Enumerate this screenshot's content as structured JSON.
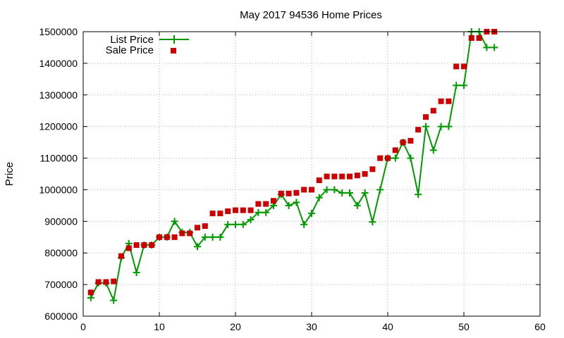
{
  "chart_data": {
    "type": "line",
    "title": "May 2017 94536 Home Prices",
    "xlabel": "",
    "ylabel": "Price",
    "xlim": [
      0,
      60
    ],
    "ylim": [
      600000,
      1500000
    ],
    "xticks": [
      0,
      10,
      20,
      30,
      40,
      50,
      60
    ],
    "yticks": [
      600000,
      700000,
      800000,
      900000,
      1000000,
      1100000,
      1200000,
      1300000,
      1400000,
      1500000
    ],
    "grid": true,
    "legend_position": "top-left",
    "series": [
      {
        "name": "List Price",
        "style": "line-plus",
        "color": "#009900",
        "x": [
          1,
          2,
          3,
          4,
          5,
          6,
          7,
          8,
          9,
          10,
          11,
          12,
          13,
          14,
          15,
          16,
          17,
          18,
          19,
          20,
          21,
          22,
          23,
          24,
          25,
          26,
          27,
          28,
          29,
          30,
          31,
          32,
          33,
          34,
          35,
          36,
          37,
          38,
          39,
          40,
          41,
          42,
          43,
          44,
          45,
          46,
          47,
          48,
          49,
          50,
          51,
          52,
          53,
          54
        ],
        "y": [
          658000,
          705000,
          705000,
          650000,
          785000,
          830000,
          738000,
          825000,
          825000,
          850000,
          850000,
          900000,
          865000,
          865000,
          820000,
          850000,
          850000,
          850000,
          890000,
          890000,
          890000,
          905000,
          928000,
          928000,
          950000,
          985000,
          950000,
          960000,
          890000,
          925000,
          975000,
          1000000,
          1000000,
          990000,
          990000,
          950000,
          990000,
          898000,
          1000000,
          1100000,
          1100000,
          1150000,
          1100000,
          985000,
          1200000,
          1125000,
          1200000,
          1200000,
          1330000,
          1330000,
          1500000,
          1500000,
          1450000,
          1450000
        ]
      },
      {
        "name": "Sale Price",
        "style": "square",
        "color": "#cc0000",
        "x": [
          1,
          2,
          3,
          4,
          5,
          6,
          7,
          8,
          9,
          10,
          11,
          12,
          13,
          14,
          15,
          16,
          17,
          18,
          19,
          20,
          21,
          22,
          23,
          24,
          25,
          26,
          27,
          28,
          29,
          30,
          31,
          32,
          33,
          34,
          35,
          36,
          37,
          38,
          39,
          40,
          41,
          42,
          43,
          44,
          45,
          46,
          47,
          48,
          49,
          50,
          51,
          52,
          53,
          54
        ],
        "y": [
          675000,
          708000,
          708000,
          710000,
          790000,
          815000,
          825000,
          825000,
          825000,
          850000,
          850000,
          850000,
          862000,
          862000,
          880000,
          885000,
          925000,
          925000,
          932000,
          935000,
          935000,
          935000,
          955000,
          955000,
          965000,
          988000,
          988000,
          990000,
          1000000,
          1000000,
          1030000,
          1042000,
          1042000,
          1042000,
          1042000,
          1045000,
          1050000,
          1065000,
          1100000,
          1100000,
          1125000,
          1150000,
          1155000,
          1190000,
          1230000,
          1250000,
          1280000,
          1280000,
          1390000,
          1390000,
          1480000,
          1480000,
          1500000,
          1500000
        ]
      }
    ]
  }
}
